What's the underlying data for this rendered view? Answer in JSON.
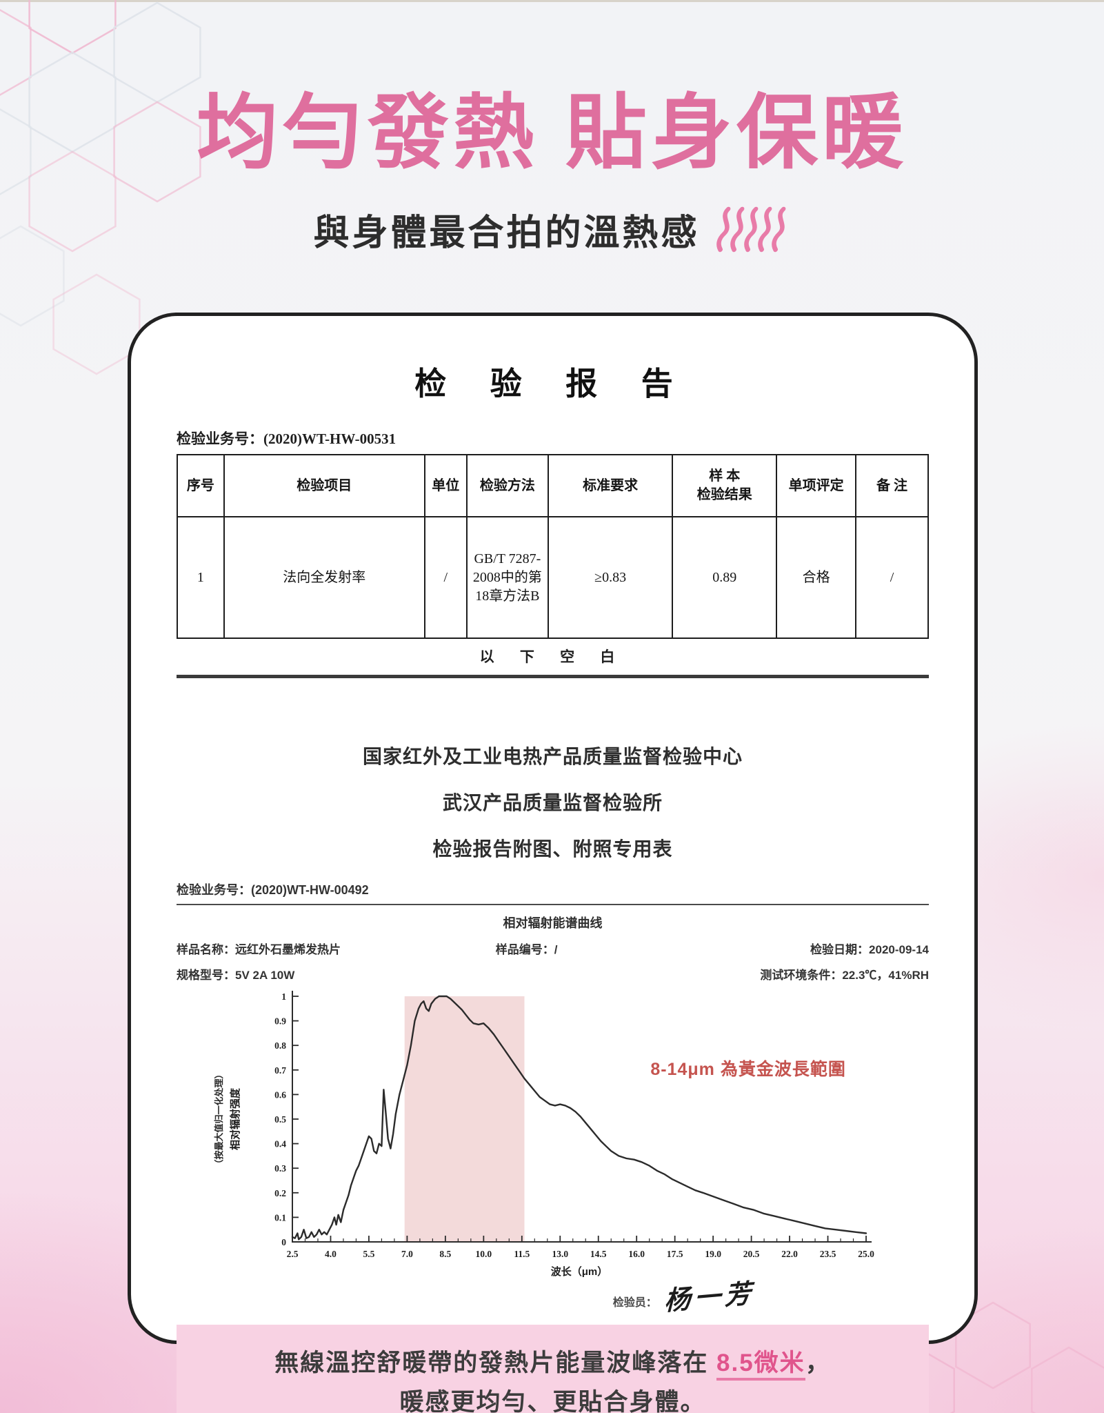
{
  "page": {
    "title": "均勻發熱 貼身保暖",
    "subtitle": "與身體最合拍的溫熱感",
    "colors": {
      "title_pink": "#df6f9e",
      "accent_pink": "#e0548c",
      "annotation_red": "#c5544f",
      "highlight_band_pink": "#f3dada",
      "footer_box_pink": "#f8d2e3"
    }
  },
  "report": {
    "title": "检 验 报 告",
    "business_no_label": "检验业务号：",
    "business_no": "(2020)WT-HW-00531",
    "table": {
      "headers": [
        "序号",
        "检验项目",
        "单位",
        "检验方法",
        "标准要求",
        "样  本\n检验结果",
        "单项评定",
        "备 注"
      ],
      "row": [
        "1",
        "法向全发射率",
        "/",
        "GB/T 7287-2008中的第18章方法B",
        "≥0.83",
        "0.89",
        "合格",
        "/"
      ],
      "footer": "以 下 空 白"
    }
  },
  "agency": {
    "line1": "国家红外及工业电热产品质量监督检验中心",
    "line2": "武汉产品质量监督检验所",
    "line3": "检验报告附图、附照专用表"
  },
  "attachment": {
    "business_no_label": "检验业务号：",
    "business_no": "(2020)WT-HW-00492",
    "chart_heading": "相对辐射能谱曲线",
    "sample_name": "样品名称：远红外石墨烯发热片",
    "sample_no": "样品编号：/",
    "test_date": "检验日期：2020-09-14",
    "spec_model": "规格型号：5V  2A  10W",
    "test_env": "测试环境条件：22.3℃，41%RH",
    "annotation": "8-14μm 為黃金波長範圍",
    "inspector_label": "检验员：",
    "inspector_signature": "杨一芳"
  },
  "chart_data": {
    "type": "line",
    "title": "相对辐射能谱曲线",
    "xlabel": "波长（μm）",
    "ylabel": "相对辐射强度",
    "ylabel_sub": "（按最大值归一化处理）",
    "xlim": [
      2.5,
      25.0
    ],
    "ylim": [
      0,
      1
    ],
    "x_ticks": [
      2.5,
      4.0,
      5.5,
      7.0,
      8.5,
      10.0,
      11.5,
      13.0,
      14.5,
      16.0,
      17.5,
      19.0,
      20.5,
      22.0,
      23.5,
      25.0
    ],
    "y_ticks": [
      0,
      0.1,
      0.2,
      0.3,
      0.4,
      0.5,
      0.6,
      0.7,
      0.8,
      0.9,
      1
    ],
    "minor_tick_step": 0.5,
    "grid": false,
    "legend": false,
    "highlight_band": {
      "from": 6.9,
      "to": 11.6,
      "color": "#f3dada"
    },
    "series": [
      {
        "name": "相对辐射强度",
        "x": [
          2.5,
          2.6,
          2.7,
          2.75,
          2.85,
          2.95,
          3.05,
          3.15,
          3.25,
          3.35,
          3.45,
          3.55,
          3.65,
          3.75,
          3.85,
          3.95,
          4.05,
          4.15,
          4.22,
          4.3,
          4.4,
          4.5,
          4.6,
          4.7,
          4.8,
          4.9,
          5.0,
          5.1,
          5.2,
          5.3,
          5.4,
          5.5,
          5.6,
          5.7,
          5.8,
          5.9,
          6.0,
          6.08,
          6.15,
          6.25,
          6.35,
          6.45,
          6.55,
          6.7,
          6.85,
          7.0,
          7.15,
          7.3,
          7.45,
          7.55,
          7.65,
          7.75,
          7.85,
          7.95,
          8.1,
          8.25,
          8.4,
          8.55,
          8.7,
          8.85,
          9.0,
          9.15,
          9.3,
          9.45,
          9.6,
          9.8,
          10.0,
          10.2,
          10.4,
          10.6,
          10.8,
          11.0,
          11.2,
          11.4,
          11.6,
          11.8,
          12.0,
          12.2,
          12.4,
          12.6,
          12.8,
          13.0,
          13.2,
          13.4,
          13.6,
          13.8,
          14.0,
          14.2,
          14.4,
          14.6,
          14.8,
          15.0,
          15.3,
          15.6,
          15.9,
          16.2,
          16.5,
          16.8,
          17.1,
          17.4,
          17.7,
          18.0,
          18.3,
          18.6,
          19.0,
          19.4,
          19.8,
          20.2,
          20.6,
          21.0,
          21.4,
          21.8,
          22.2,
          22.6,
          23.0,
          23.4,
          23.8,
          24.2,
          24.6,
          25.0
        ],
        "y": [
          0.02,
          0.015,
          0.035,
          0.01,
          0.02,
          0.05,
          0.015,
          0.02,
          0.04,
          0.02,
          0.03,
          0.05,
          0.03,
          0.04,
          0.03,
          0.05,
          0.07,
          0.1,
          0.07,
          0.11,
          0.08,
          0.13,
          0.16,
          0.19,
          0.23,
          0.26,
          0.29,
          0.31,
          0.34,
          0.37,
          0.4,
          0.43,
          0.42,
          0.37,
          0.36,
          0.4,
          0.39,
          0.62,
          0.54,
          0.42,
          0.38,
          0.44,
          0.52,
          0.6,
          0.66,
          0.72,
          0.8,
          0.9,
          0.95,
          0.97,
          0.98,
          0.95,
          0.94,
          0.97,
          0.99,
          1.0,
          1.0,
          1.0,
          0.99,
          0.975,
          0.96,
          0.945,
          0.925,
          0.905,
          0.89,
          0.885,
          0.89,
          0.87,
          0.845,
          0.815,
          0.785,
          0.755,
          0.725,
          0.695,
          0.665,
          0.64,
          0.615,
          0.59,
          0.575,
          0.56,
          0.555,
          0.56,
          0.555,
          0.545,
          0.53,
          0.51,
          0.485,
          0.46,
          0.435,
          0.41,
          0.39,
          0.37,
          0.35,
          0.34,
          0.335,
          0.325,
          0.31,
          0.29,
          0.275,
          0.255,
          0.24,
          0.225,
          0.21,
          0.2,
          0.185,
          0.17,
          0.155,
          0.14,
          0.13,
          0.115,
          0.105,
          0.095,
          0.085,
          0.075,
          0.065,
          0.055,
          0.05,
          0.045,
          0.04,
          0.035
        ]
      }
    ]
  },
  "footer_box": {
    "line1_prefix": "無線溫控舒暖帶的發熱片能量波峰落在 ",
    "line1_highlight": "8.5微米",
    "line1_suffix": "，",
    "line2": "暖感更均勻、更貼合身體。"
  }
}
